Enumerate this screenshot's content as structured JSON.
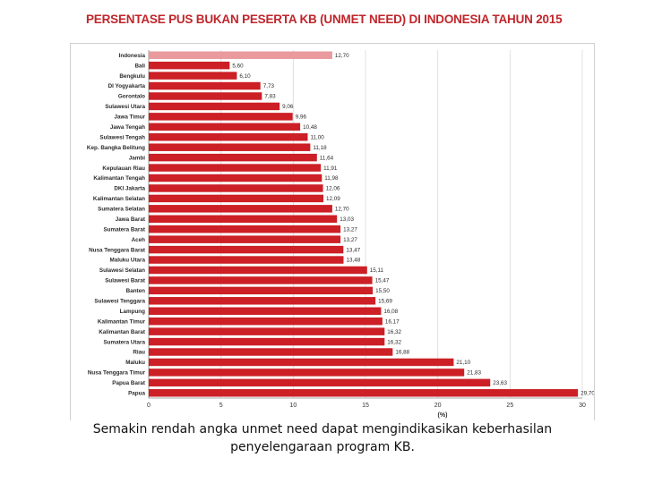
{
  "slide": {
    "title": "PERSENTASE PUS BUKAN PESERTA KB (UNMET NEED) DI INDONESIA TAHUN 2015",
    "caption_line1": "Semakin rendah angka unmet need dapat mengindikasikan keberhasilan",
    "caption_line2": "penyelengaraan program KB."
  },
  "colors": {
    "bar": "#cc1f26",
    "bar_highlight": "#e89a9c",
    "title": "#c0262b",
    "grid": "#d9d9d9"
  },
  "chart_data": {
    "type": "bar",
    "orientation": "horizontal",
    "title": "PERSENTASE PUS BUKAN PESERTA KB (UNMET NEED) DI INDONESIA TAHUN 2015",
    "xlabel": "(%)",
    "ylabel": "",
    "xlim": [
      0,
      30
    ],
    "xticks": [
      0,
      5,
      10,
      15,
      20,
      25,
      30
    ],
    "grid": true,
    "legend": "none",
    "highlight_category": "Indonesia",
    "categories": [
      "Indonesia",
      "Bali",
      "Bengkulu",
      "DI Yogyakarta",
      "Gorontalo",
      "Sulawesi Utara",
      "Jawa Timur",
      "Jawa Tengah",
      "Sulawesi Tengah",
      "Kep. Bangka Belitung",
      "Jambi",
      "Kepulauan Riau",
      "Kalimantan Tengah",
      "DKI Jakarta",
      "Kalimantan Selatan",
      "Sumatera Selatan",
      "Jawa Barat",
      "Sumatera Barat",
      "Aceh",
      "Nusa Tenggara Barat",
      "Maluku Utara",
      "Sulawesi Selatan",
      "Sulawesi Barat",
      "Banten",
      "Sulawesi Tenggara",
      "Lampung",
      "Kalimantan Timur",
      "Kalimantan Barat",
      "Sumatera Utara",
      "Riau",
      "Maluku",
      "Nusa Tenggara Timur",
      "Papua Barat",
      "Papua"
    ],
    "values": [
      12.7,
      5.6,
      6.1,
      7.73,
      7.83,
      9.06,
      9.96,
      10.48,
      11.0,
      11.18,
      11.64,
      11.91,
      11.98,
      12.06,
      12.09,
      12.7,
      13.03,
      13.27,
      13.27,
      13.47,
      13.48,
      15.11,
      15.47,
      15.5,
      15.69,
      16.08,
      16.17,
      16.32,
      16.32,
      16.88,
      21.1,
      21.83,
      23.63,
      29.7
    ],
    "value_labels": [
      "12,70",
      "5,60",
      "6,10",
      "7,73",
      "7,83",
      "9,06",
      "9,96",
      "10,48",
      "11,00",
      "11,18",
      "11,64",
      "11,91",
      "11,98",
      "12,06",
      "12,09",
      "12,70",
      "13,03",
      "13,27",
      "13,27",
      "13,47",
      "13,48",
      "15,11",
      "15,47",
      "15,50",
      "15,69",
      "16,08",
      "16,17",
      "16,32",
      "16,32",
      "16,88",
      "21,10",
      "21,83",
      "23,63",
      "29,70"
    ]
  }
}
